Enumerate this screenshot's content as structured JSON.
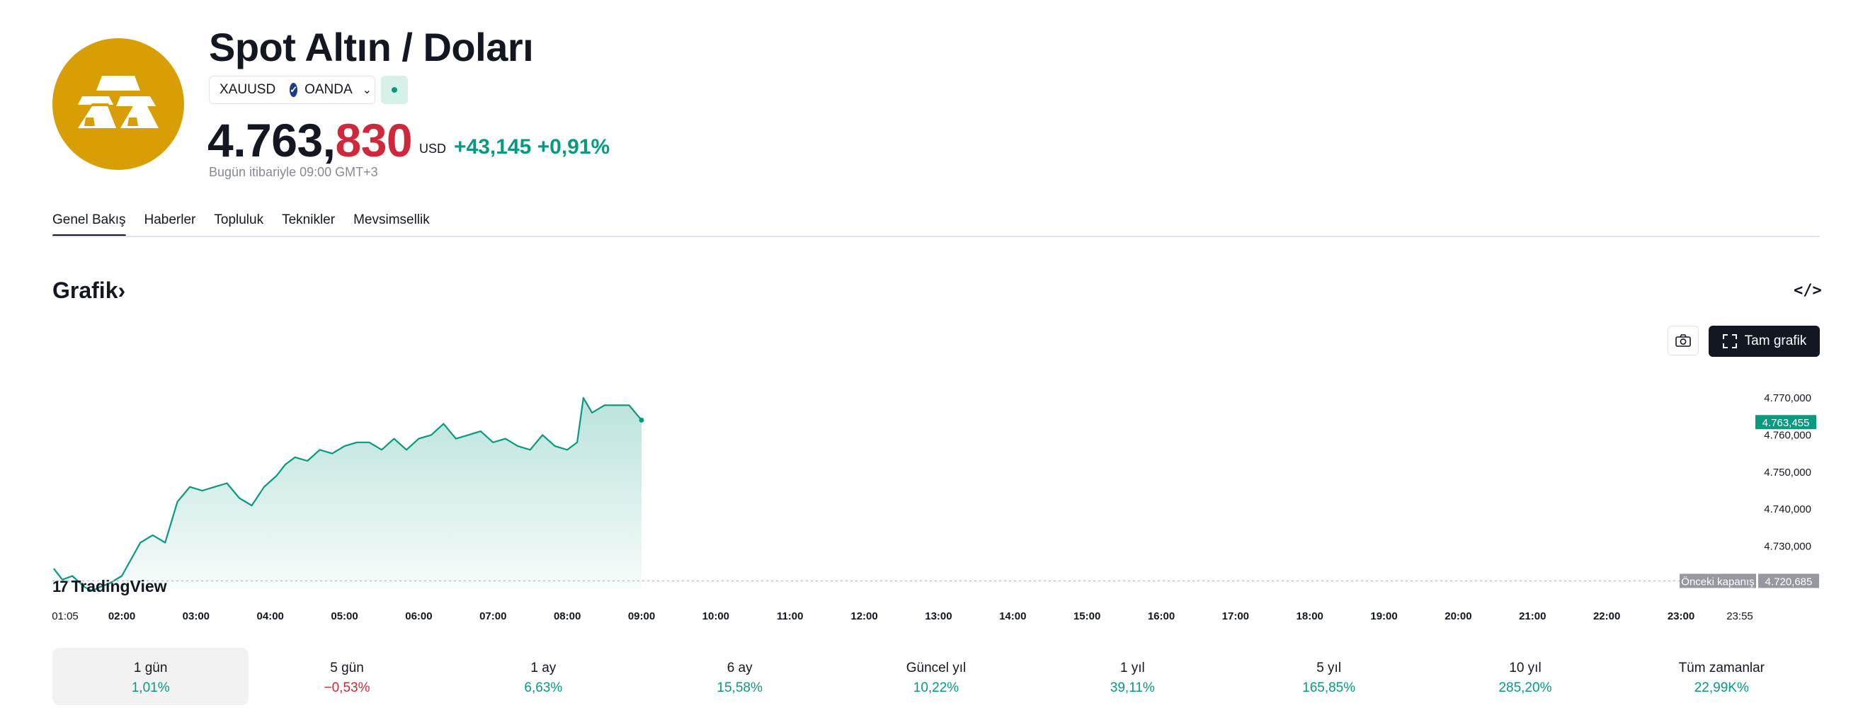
{
  "header": {
    "title": "Spot Altın / Doları",
    "symbol": "XAUUSD",
    "exchange": "OANDA",
    "price_int": "4.763,",
    "price_dec": "830",
    "currency": "USD",
    "change": "+43,145 +0,91%",
    "as_of": "Bugün itibariyle 09:00 GMT+3"
  },
  "tabs": [
    "Genel Bakış",
    "Haberler",
    "Topluluk",
    "Teknikler",
    "Mevsimsellik"
  ],
  "section": {
    "title": "Grafik",
    "title_chevron": "›",
    "full_chart_label": "Tam grafik"
  },
  "branding": {
    "name": "TradingView",
    "mark": "17"
  },
  "colors": {
    "accent": "#089981",
    "negative": "#D0273A",
    "logo_bg": "#D89E04",
    "dark": "#131722"
  },
  "icons": {
    "logo": "gold-bars-icon",
    "embed": "code-icon",
    "camera": "camera-icon",
    "fullscreen": "fullscreen-icon"
  },
  "chart_data": {
    "type": "area",
    "x_ticks": [
      "01:05",
      "02:00",
      "03:00",
      "04:00",
      "05:00",
      "06:00",
      "07:00",
      "08:00",
      "09:00",
      "10:00",
      "11:00",
      "12:00",
      "13:00",
      "14:00",
      "15:00",
      "16:00",
      "17:00",
      "18:00",
      "19:00",
      "20:00",
      "21:00",
      "22:00",
      "23:00",
      "23:55"
    ],
    "y_ticks": [
      "4.770,000",
      "4.760,000",
      "4.750,000",
      "4.740,000",
      "4.730,000"
    ],
    "ylim": [
      4716,
      4778
    ],
    "series": [
      {
        "x": [
          "01:05",
          "01:12",
          "01:20",
          "01:30",
          "01:36",
          "01:42",
          "01:50",
          "02:00",
          "02:10",
          "02:15",
          "02:25",
          "02:35",
          "02:45",
          "02:55",
          "03:05",
          "03:15",
          "03:25",
          "03:35",
          "03:45",
          "03:55",
          "04:05",
          "04:12",
          "04:20",
          "04:30",
          "04:40",
          "04:50",
          "05:00",
          "05:10",
          "05:20",
          "05:30",
          "05:40",
          "05:50",
          "06:00",
          "06:10",
          "06:20",
          "06:30",
          "06:40",
          "06:50",
          "07:00",
          "07:10",
          "07:20",
          "07:30",
          "07:40",
          "07:50",
          "08:00",
          "08:08",
          "08:13",
          "08:20",
          "08:30",
          "08:40",
          "08:50",
          "08:55",
          "09:00"
        ],
        "y": [
          4724,
          4721,
          4722,
          4719,
          4718,
          4719,
          4720,
          4722,
          4728,
          4731,
          4733,
          4731,
          4742,
          4746,
          4745,
          4746,
          4747,
          4743,
          4741,
          4746,
          4749,
          4752,
          4754,
          4753,
          4756,
          4755,
          4757,
          4758,
          4758,
          4756,
          4759,
          4756,
          4759,
          4760,
          4763,
          4759,
          4760,
          4761,
          4758,
          4759,
          4757,
          4756,
          4760,
          4757,
          4756,
          4758,
          4770,
          4766,
          4768,
          4768,
          4768,
          4766,
          4764
        ]
      }
    ],
    "current_value": "4.763,455",
    "previous_close": {
      "label": "Önceki kapanış",
      "value": "4.720,685",
      "y": 4720.685
    },
    "grid": false
  },
  "periods": [
    {
      "label": "1 gün",
      "value": "1,01%"
    },
    {
      "label": "5 gün",
      "value": "−0,53%"
    },
    {
      "label": "1 ay",
      "value": "6,63%"
    },
    {
      "label": "6 ay",
      "value": "15,58%"
    },
    {
      "label": "Güncel yıl",
      "value": "10,22%"
    },
    {
      "label": "1 yıl",
      "value": "39,11%"
    },
    {
      "label": "5 yıl",
      "value": "165,85%"
    },
    {
      "label": "10 yıl",
      "value": "285,20%"
    },
    {
      "label": "Tüm zamanlar",
      "value": "22,99K%"
    }
  ]
}
